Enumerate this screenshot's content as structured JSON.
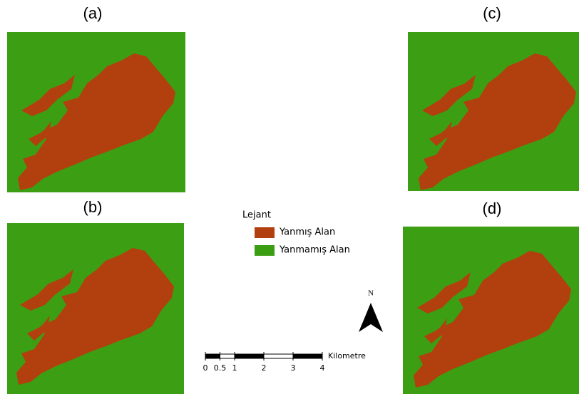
{
  "panels": [
    {
      "label": "(a)"
    },
    {
      "label": "(b)"
    },
    {
      "label": "(c)"
    },
    {
      "label": "(d)"
    }
  ],
  "legend": {
    "title": "Lejant",
    "items": [
      {
        "label": "Yanmış Alan",
        "color": "#b2400f"
      },
      {
        "label": "Yanmamış Alan",
        "color": "#3c9e13"
      }
    ]
  },
  "north": "N",
  "scale": {
    "ticks": [
      0,
      0.5,
      1,
      2,
      3,
      4
    ],
    "unit": "Kilometre"
  }
}
